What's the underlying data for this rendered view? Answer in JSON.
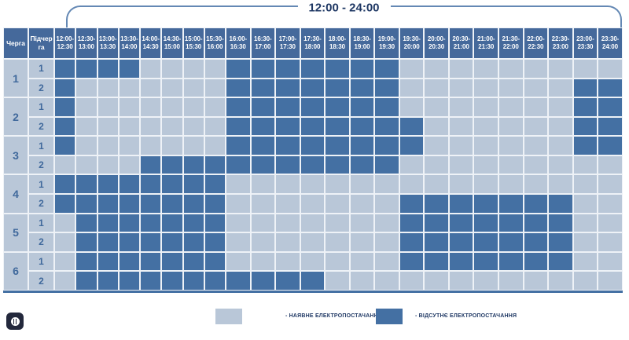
{
  "header": {
    "bracket_label": "12:00 - 24:00"
  },
  "table": {
    "queue_header": "Черга",
    "subqueue_header": "Підчерга",
    "queue_labels": [
      "1",
      "2",
      "3",
      "4",
      "5",
      "6"
    ],
    "sub_labels": [
      "1",
      "2"
    ],
    "time_slots": [
      "12:00-\n12:30",
      "12:30-\n13:00",
      "13:00-\n13:30",
      "13:30-\n14:00",
      "14:00-\n14:30",
      "14:30-\n15:00",
      "15:00-\n15:30",
      "15:30-\n16:00",
      "16:00-\n16:30",
      "16:30-\n17:00",
      "17:00-\n17:30",
      "17:30-\n18:00",
      "18:00-\n18:30",
      "18:30-\n19:00",
      "19:00-\n19:30",
      "19:30-\n20:00",
      "20:00-\n20:30",
      "20:30-\n21:00",
      "21:00-\n21:30",
      "21:30-\n22:00",
      "22:00-\n22:30",
      "22:30-\n23:00",
      "23:00-\n23:30",
      "23:30-\n24:00"
    ]
  },
  "legend": {
    "available_label": "- НАЯВНЕ ЕЛЕКТРОПОСТАЧАННЯ",
    "outage_label": "- ВІДСУТНЄ ЕЛЕКТРОПОСТАЧАННЯ"
  },
  "colors": {
    "available": "#b9c7d8",
    "outage": "#4470a3",
    "header_bg": "#45699b",
    "accent_text": "#1f3864",
    "num_text": "#40699c",
    "bracket": "#6488b4"
  },
  "chart_data": {
    "type": "heatmap",
    "title": "12:00 - 24:00",
    "x_labels": [
      "12:00-12:30",
      "12:30-13:00",
      "13:00-13:30",
      "13:30-14:00",
      "14:00-14:30",
      "14:30-15:00",
      "15:00-15:30",
      "15:30-16:00",
      "16:00-16:30",
      "16:30-17:00",
      "17:00-17:30",
      "17:30-18:00",
      "18:00-18:30",
      "18:30-19:00",
      "19:00-19:30",
      "19:30-20:00",
      "20:00-20:30",
      "20:30-21:00",
      "21:00-21:30",
      "21:30-22:00",
      "22:00-22:30",
      "22:30-23:00",
      "23:00-23:30",
      "23:30-24:00"
    ],
    "y_labels": [
      "черга 1 підчерга 1",
      "черга 1 підчерга 2",
      "черга 2 підчерга 1",
      "черга 2 підчерга 2",
      "черга 3 підчерга 1",
      "черга 3 підчерга 2",
      "черга 4 підчерга 1",
      "черга 4 підчерга 2",
      "черга 5 підчерга 1",
      "черга 5 підчерга 2",
      "черга 6 підчерга 1",
      "черга 6 підчерга 2"
    ],
    "value_meaning": {
      "0": "наявне електропостачання",
      "1": "відсутнє електропостачання"
    },
    "values": [
      [
        1,
        1,
        1,
        1,
        0,
        0,
        0,
        0,
        1,
        1,
        1,
        1,
        1,
        1,
        1,
        0,
        0,
        0,
        0,
        0,
        0,
        0,
        0,
        0
      ],
      [
        1,
        0,
        0,
        0,
        0,
        0,
        0,
        0,
        1,
        1,
        1,
        1,
        1,
        1,
        1,
        0,
        0,
        0,
        0,
        0,
        0,
        0,
        1,
        1
      ],
      [
        1,
        0,
        0,
        0,
        0,
        0,
        0,
        0,
        1,
        1,
        1,
        1,
        1,
        1,
        1,
        0,
        0,
        0,
        0,
        0,
        0,
        0,
        1,
        1
      ],
      [
        1,
        0,
        0,
        0,
        0,
        0,
        0,
        0,
        1,
        1,
        1,
        1,
        1,
        1,
        1,
        1,
        0,
        0,
        0,
        0,
        0,
        0,
        1,
        1
      ],
      [
        1,
        0,
        0,
        0,
        0,
        0,
        0,
        0,
        1,
        1,
        1,
        1,
        1,
        1,
        1,
        1,
        0,
        0,
        0,
        0,
        0,
        0,
        1,
        1
      ],
      [
        0,
        0,
        0,
        0,
        1,
        1,
        1,
        1,
        1,
        1,
        1,
        1,
        1,
        1,
        1,
        0,
        0,
        0,
        0,
        0,
        0,
        0,
        0,
        0
      ],
      [
        1,
        1,
        1,
        1,
        1,
        1,
        1,
        1,
        0,
        0,
        0,
        0,
        0,
        0,
        0,
        0,
        0,
        0,
        0,
        0,
        0,
        0,
        0,
        0
      ],
      [
        1,
        1,
        1,
        1,
        1,
        1,
        1,
        1,
        0,
        0,
        0,
        0,
        0,
        0,
        0,
        1,
        1,
        1,
        1,
        1,
        1,
        1,
        0,
        0
      ],
      [
        0,
        1,
        1,
        1,
        1,
        1,
        1,
        1,
        0,
        0,
        0,
        0,
        0,
        0,
        0,
        1,
        1,
        1,
        1,
        1,
        1,
        1,
        0,
        0
      ],
      [
        0,
        1,
        1,
        1,
        1,
        1,
        1,
        1,
        0,
        0,
        0,
        0,
        0,
        0,
        0,
        1,
        1,
        1,
        1,
        1,
        1,
        1,
        0,
        0
      ],
      [
        0,
        1,
        1,
        1,
        1,
        1,
        1,
        1,
        0,
        0,
        0,
        0,
        0,
        0,
        0,
        1,
        1,
        1,
        1,
        1,
        1,
        1,
        0,
        0
      ],
      [
        0,
        1,
        1,
        1,
        1,
        1,
        1,
        1,
        1,
        1,
        1,
        1,
        0,
        0,
        0,
        0,
        0,
        0,
        0,
        0,
        0,
        0,
        0,
        0
      ]
    ]
  }
}
